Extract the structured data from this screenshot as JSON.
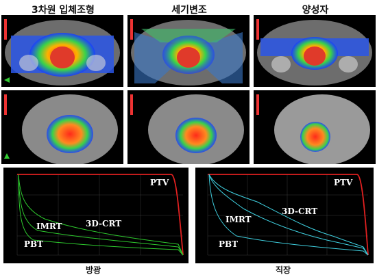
{
  "titles": {
    "col1": "3차원 입체조형",
    "col2": "세기변조",
    "col3": "양성자"
  },
  "captions": {
    "left": "방광",
    "right": "직장"
  },
  "dvh_left": {
    "ptv": "PTV",
    "imrt": "IMRT",
    "crt": "3D-CRT",
    "pbt": "PBT",
    "curve_color": "#2ecc2e",
    "ptv_color": "#e02020"
  },
  "dvh_right": {
    "ptv": "PTV",
    "imrt": "IMRT",
    "crt": "3D-CRT",
    "pbt": "PBT",
    "curve_color": "#3fd0e0",
    "ptv_color": "#e02020"
  }
}
